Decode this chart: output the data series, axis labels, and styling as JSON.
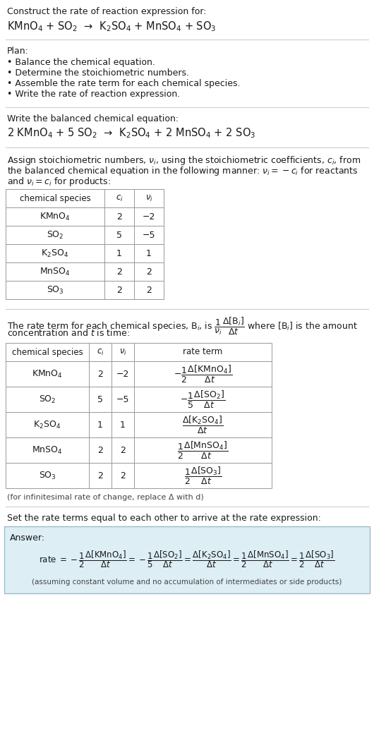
{
  "bg_color": "#ffffff",
  "text_color": "#1a1a1a",
  "title_text": "Construct the rate of reaction expression for:",
  "reaction_unbalanced": "KMnO$_4$ + SO$_2$  →  K$_2$SO$_4$ + MnSO$_4$ + SO$_3$",
  "plan_header": "Plan:",
  "plan_items": [
    "• Balance the chemical equation.",
    "• Determine the stoichiometric numbers.",
    "• Assemble the rate term for each chemical species.",
    "• Write the rate of reaction expression."
  ],
  "balanced_header": "Write the balanced chemical equation:",
  "reaction_balanced": "2 KMnO$_4$ + 5 SO$_2$  →  K$_2$SO$_4$ + 2 MnSO$_4$ + 2 SO$_3$",
  "stoich_header_lines": [
    "Assign stoichiometric numbers, $\\nu_i$, using the stoichiometric coefficients, $c_i$, from",
    "the balanced chemical equation in the following manner: $\\nu_i = -c_i$ for reactants",
    "and $\\nu_i = c_i$ for products:"
  ],
  "table1_cols": [
    "chemical species",
    "$c_i$",
    "$\\nu_i$"
  ],
  "table1_data": [
    [
      "KMnO$_4$",
      "2",
      "−2"
    ],
    [
      "SO$_2$",
      "5",
      "−5"
    ],
    [
      "K$_2$SO$_4$",
      "1",
      "1"
    ],
    [
      "MnSO$_4$",
      "2",
      "2"
    ],
    [
      "SO$_3$",
      "2",
      "2"
    ]
  ],
  "rate_term_header_lines": [
    "The rate term for each chemical species, B$_i$, is $\\dfrac{1}{\\nu_i}\\dfrac{\\Delta[\\mathrm{B}_i]}{\\Delta t}$ where [B$_i$] is the amount",
    "concentration and $t$ is time:"
  ],
  "table2_cols": [
    "chemical species",
    "$c_i$",
    "$\\nu_i$",
    "rate term"
  ],
  "table2_data": [
    [
      "KMnO$_4$",
      "2",
      "−2",
      "$-\\dfrac{1}{2}\\dfrac{\\Delta[\\mathrm{KMnO_4}]}{\\Delta t}$"
    ],
    [
      "SO$_2$",
      "5",
      "−5",
      "$-\\dfrac{1}{5}\\dfrac{\\Delta[\\mathrm{SO_2}]}{\\Delta t}$"
    ],
    [
      "K$_2$SO$_4$",
      "1",
      "1",
      "$\\dfrac{\\Delta[\\mathrm{K_2SO_4}]}{\\Delta t}$"
    ],
    [
      "MnSO$_4$",
      "2",
      "2",
      "$\\dfrac{1}{2}\\dfrac{\\Delta[\\mathrm{MnSO_4}]}{\\Delta t}$"
    ],
    [
      "SO$_3$",
      "2",
      "2",
      "$\\dfrac{1}{2}\\dfrac{\\Delta[\\mathrm{SO_3}]}{\\Delta t}$"
    ]
  ],
  "infinitesimal_note": "(for infinitesimal rate of change, replace Δ with d)",
  "set_rate_header": "Set the rate terms equal to each other to arrive at the rate expression:",
  "answer_box_color": "#ddeef5",
  "answer_box_border": "#9bbccc",
  "answer_label": "Answer:",
  "answer_rate": "rate $= -\\dfrac{1}{2}\\dfrac{\\Delta[\\mathrm{KMnO_4}]}{\\Delta t} = -\\dfrac{1}{5}\\dfrac{\\Delta[\\mathrm{SO_2}]}{\\Delta t} = \\dfrac{\\Delta[\\mathrm{K_2SO_4}]}{\\Delta t} = \\dfrac{1}{2}\\dfrac{\\Delta[\\mathrm{MnSO_4}]}{\\Delta t} = \\dfrac{1}{2}\\dfrac{\\Delta[\\mathrm{SO_3}]}{\\Delta t}$",
  "answer_note": "(assuming constant volume and no accumulation of intermediates or side products)",
  "sep_color": "#cccccc",
  "table_border_color": "#999999",
  "fs": 9.0,
  "fs_small": 8.0,
  "fs_chem": 10.5,
  "fs_table": 9.0,
  "fs_table_hdr": 8.5
}
